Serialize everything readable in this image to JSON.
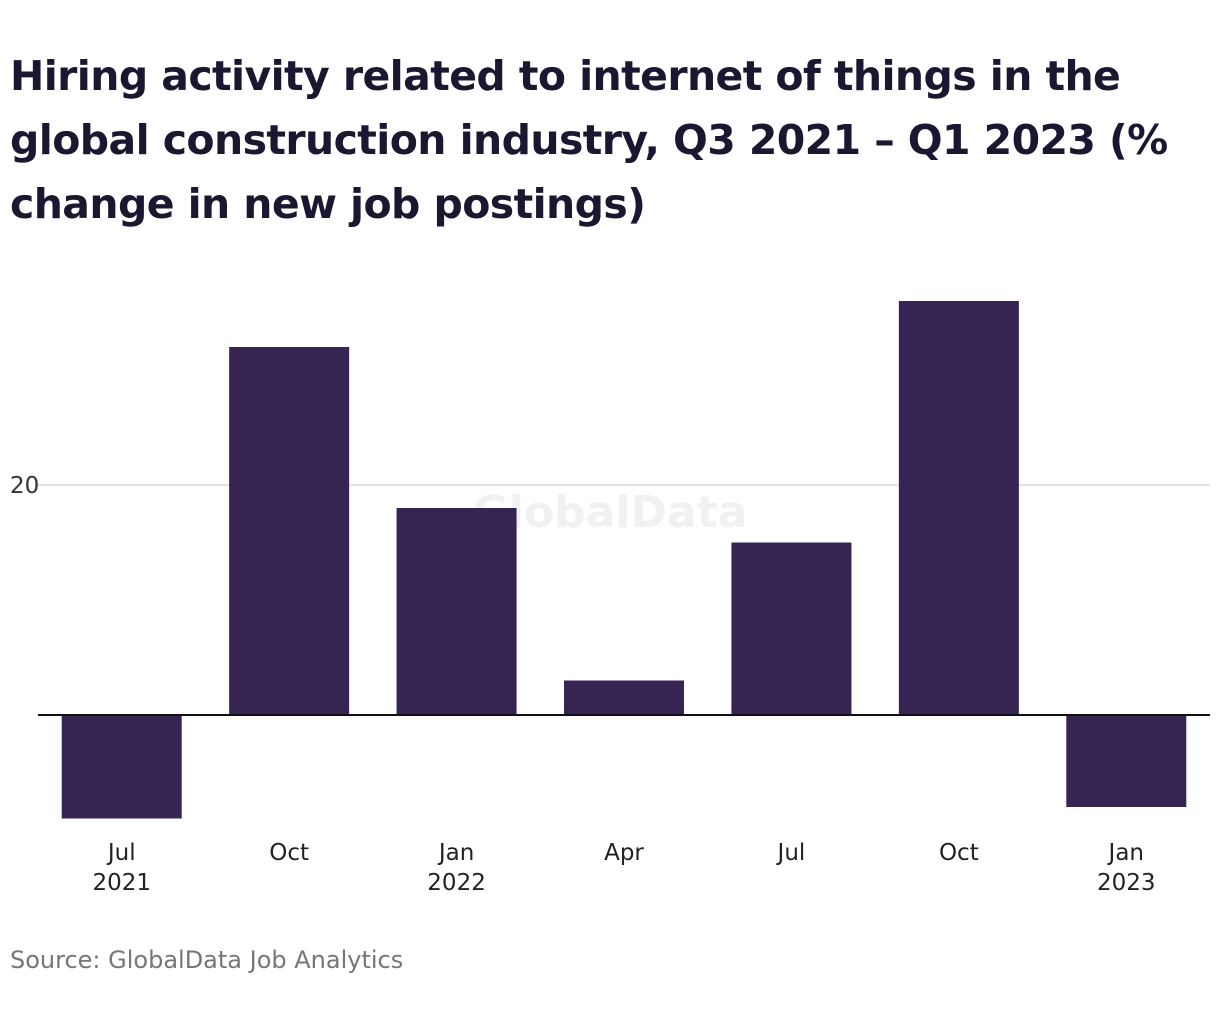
{
  "chart_data": {
    "type": "bar",
    "title": "Hiring activity related to internet of things in the global construction industry, Q3 2021 – Q1 2023 (% change in new job postings)",
    "xlabel": "",
    "ylabel": "",
    "categories": [
      {
        "month": "Jul",
        "year": "2021"
      },
      {
        "month": "Oct",
        "year": ""
      },
      {
        "month": "Jan",
        "year": "2022"
      },
      {
        "month": "Apr",
        "year": ""
      },
      {
        "month": "Jul",
        "year": ""
      },
      {
        "month": "Oct",
        "year": ""
      },
      {
        "month": "Jan",
        "year": "2023"
      }
    ],
    "values": [
      -9,
      32,
      18,
      3,
      15,
      36,
      -8
    ],
    "ylim": [
      -9,
      36
    ],
    "yticks": [
      20
    ],
    "grid": true,
    "legend": "none",
    "bar_color": "#362452",
    "source": "Source: GlobalData Job Analytics",
    "watermark": "GlobalData"
  }
}
